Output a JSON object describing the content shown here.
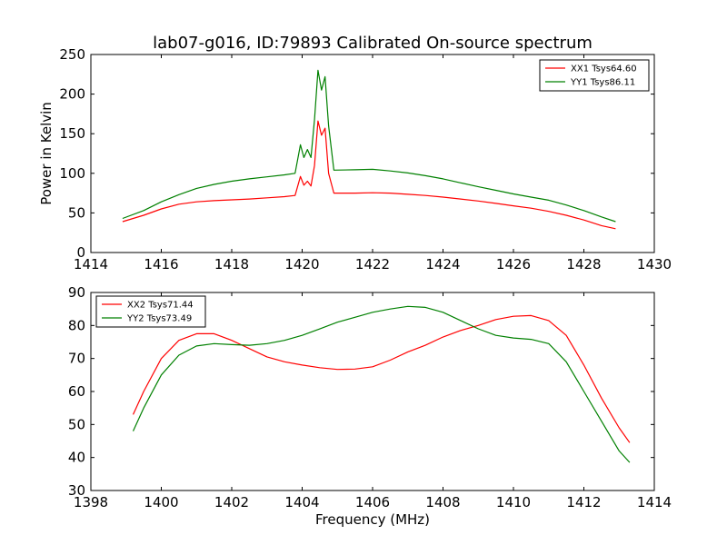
{
  "figure": {
    "title": "lab07-g016, ID:79893 Calibrated On-source spectrum"
  },
  "chart_data": [
    {
      "type": "line",
      "title": "lab07-g016, ID:79893 Calibrated On-source spectrum",
      "xlabel": "",
      "ylabel": "Power in Kelvin",
      "xlim": [
        1414,
        1430
      ],
      "ylim": [
        0,
        250
      ],
      "xticks": [
        1414,
        1416,
        1418,
        1420,
        1422,
        1424,
        1426,
        1428,
        1430
      ],
      "yticks": [
        0,
        50,
        100,
        150,
        200,
        250
      ],
      "grid": false,
      "legend_position": "top-right",
      "series": [
        {
          "name": "XX1 Tsys64.60",
          "color": "#ff0000",
          "x": [
            1414.9,
            1415.5,
            1416.0,
            1416.5,
            1417.0,
            1417.5,
            1418.0,
            1418.5,
            1419.0,
            1419.5,
            1419.8,
            1419.95,
            1420.05,
            1420.15,
            1420.25,
            1420.35,
            1420.45,
            1420.55,
            1420.65,
            1420.75,
            1420.9,
            1421.5,
            1422.0,
            1422.5,
            1423.0,
            1423.5,
            1424.0,
            1424.5,
            1425.0,
            1425.5,
            1426.0,
            1426.5,
            1427.0,
            1427.5,
            1428.0,
            1428.5,
            1428.9
          ],
          "y": [
            39,
            47,
            55,
            61,
            64,
            65.5,
            66.5,
            67.5,
            69,
            70.5,
            72,
            96,
            85,
            90,
            84,
            110,
            166,
            148,
            157,
            100,
            75,
            75,
            75.5,
            75,
            73.5,
            72,
            70,
            67.5,
            65,
            62,
            59,
            56,
            52,
            47,
            41,
            34,
            30
          ]
        },
        {
          "name": "YY1 Tsys86.11",
          "color": "#008000",
          "x": [
            1414.9,
            1415.5,
            1416.0,
            1416.5,
            1417.0,
            1417.5,
            1418.0,
            1418.5,
            1419.0,
            1419.5,
            1419.8,
            1419.95,
            1420.05,
            1420.15,
            1420.25,
            1420.35,
            1420.45,
            1420.55,
            1420.65,
            1420.75,
            1420.9,
            1421.5,
            1422.0,
            1422.5,
            1423.0,
            1423.5,
            1424.0,
            1424.5,
            1425.0,
            1425.5,
            1426.0,
            1426.5,
            1427.0,
            1427.5,
            1428.0,
            1428.5,
            1428.9
          ],
          "y": [
            43,
            53,
            64,
            73,
            81,
            86,
            90,
            93,
            95.5,
            98,
            100,
            136,
            120,
            130,
            120,
            168,
            230,
            205,
            222,
            160,
            104,
            104.5,
            105,
            103,
            100.5,
            97,
            93,
            88,
            83,
            78.5,
            74,
            70,
            66,
            60,
            53,
            45,
            39
          ]
        }
      ]
    },
    {
      "type": "line",
      "title": "",
      "xlabel": "Frequency (MHz)",
      "ylabel": "",
      "xlim": [
        1398,
        1414
      ],
      "ylim": [
        30,
        90
      ],
      "xticks": [
        1398,
        1400,
        1402,
        1404,
        1406,
        1408,
        1410,
        1412,
        1414
      ],
      "yticks": [
        30,
        40,
        50,
        60,
        70,
        80,
        90
      ],
      "grid": false,
      "legend_position": "top-left",
      "series": [
        {
          "name": "XX2 Tsys71.44",
          "color": "#ff0000",
          "x": [
            1399.2,
            1399.5,
            1400.0,
            1400.5,
            1401.0,
            1401.5,
            1402.0,
            1402.5,
            1403.0,
            1403.5,
            1404.0,
            1404.5,
            1405.0,
            1405.5,
            1406.0,
            1406.5,
            1407.0,
            1407.5,
            1408.0,
            1408.5,
            1409.0,
            1409.5,
            1410.0,
            1410.5,
            1411.0,
            1411.5,
            1412.0,
            1412.5,
            1413.0,
            1413.3
          ],
          "y": [
            53,
            60,
            70,
            75.5,
            77.5,
            77.5,
            75.5,
            73,
            70.5,
            69,
            68,
            67.2,
            66.7,
            66.8,
            67.5,
            69.5,
            72,
            74,
            76.5,
            78.5,
            80,
            81.8,
            82.8,
            83,
            81.5,
            77,
            68,
            58,
            49,
            44.5
          ]
        },
        {
          "name": "YY2 Tsys73.49",
          "color": "#008000",
          "x": [
            1399.2,
            1399.5,
            1400.0,
            1400.5,
            1401.0,
            1401.5,
            1402.0,
            1402.5,
            1403.0,
            1403.5,
            1404.0,
            1404.5,
            1405.0,
            1405.5,
            1406.0,
            1406.5,
            1407.0,
            1407.5,
            1408.0,
            1408.5,
            1409.0,
            1409.5,
            1410.0,
            1410.5,
            1411.0,
            1411.5,
            1412.0,
            1412.5,
            1413.0,
            1413.3
          ],
          "y": [
            48,
            55,
            65,
            71,
            73.8,
            74.5,
            74.2,
            74,
            74.5,
            75.5,
            77,
            79,
            81,
            82.5,
            84,
            85,
            85.8,
            85.5,
            84,
            81.5,
            79,
            77,
            76.2,
            75.8,
            74.5,
            69,
            60,
            51,
            42,
            38.5
          ]
        }
      ]
    }
  ]
}
